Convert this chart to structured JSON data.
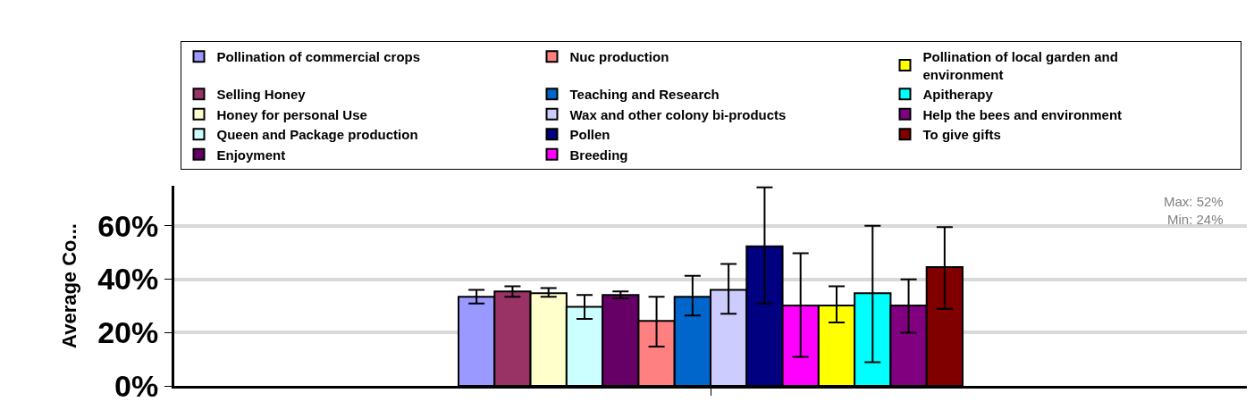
{
  "chart_data": {
    "type": "bar",
    "ylabel": "Average Co...",
    "categories": [
      null
    ],
    "ylim": [
      0,
      75
    ],
    "yticks": [
      {
        "value": 0,
        "label": "0%"
      },
      {
        "value": 20,
        "label": "20%"
      },
      {
        "value": 40,
        "label": "40%"
      },
      {
        "value": 60,
        "label": "60%"
      }
    ],
    "grid": "y",
    "legend": "top",
    "annotations": [
      "Max: 52%",
      "Min: 24%"
    ],
    "series": [
      {
        "name": "Pollination of commercial crops",
        "color": "#9999ff",
        "values": [
          33.4
        ],
        "errors": [
          [
            30.9,
            36.0
          ]
        ]
      },
      {
        "name": "Selling Honey",
        "color": "#993366",
        "values": [
          35.4
        ],
        "errors": [
          [
            33.4,
            37.3
          ]
        ]
      },
      {
        "name": "Honey for personal Use",
        "color": "#ffffcc",
        "values": [
          34.7
        ],
        "errors": [
          [
            33.4,
            36.7
          ]
        ]
      },
      {
        "name": "Queen and Package production",
        "color": "#ccffff",
        "values": [
          29.6
        ],
        "errors": [
          [
            25.1,
            34.1
          ]
        ]
      },
      {
        "name": "Enjoyment",
        "color": "#660066",
        "values": [
          34.1
        ],
        "errors": [
          [
            32.8,
            35.4
          ]
        ]
      },
      {
        "name": "Nuc production",
        "color": "#ff8080",
        "values": [
          24.4
        ],
        "errors": [
          [
            14.7,
            33.4
          ]
        ]
      },
      {
        "name": "Teaching and Research",
        "color": "#0066cc",
        "values": [
          33.4
        ],
        "errors": [
          [
            26.4,
            41.3
          ]
        ]
      },
      {
        "name": "Wax and other colony bi-products",
        "color": "#ccccff",
        "values": [
          36.0
        ],
        "errors": [
          [
            27.0,
            45.7
          ]
        ]
      },
      {
        "name": "Pollen",
        "color": "#000080",
        "values": [
          52.3
        ],
        "errors": [
          [
            30.9,
            74.4
          ]
        ]
      },
      {
        "name": "Breeding",
        "color": "#ff00ff",
        "values": [
          30.1
        ],
        "errors": [
          [
            10.9,
            49.7
          ]
        ]
      },
      {
        "name": "Pollination of local garden and environment",
        "color": "#ffff00",
        "values": [
          30.1
        ],
        "errors": [
          [
            23.8,
            37.3
          ]
        ]
      },
      {
        "name": "Apitherapy",
        "color": "#00ffff",
        "values": [
          34.7
        ],
        "errors": [
          [
            8.9,
            60.0
          ]
        ]
      },
      {
        "name": "Help the bees and environment",
        "color": "#800080",
        "values": [
          30.1
        ],
        "errors": [
          [
            19.9,
            39.9
          ]
        ]
      },
      {
        "name": "To give gifts",
        "color": "#800000",
        "values": [
          44.5
        ],
        "errors": [
          [
            28.9,
            59.5
          ]
        ]
      }
    ]
  }
}
